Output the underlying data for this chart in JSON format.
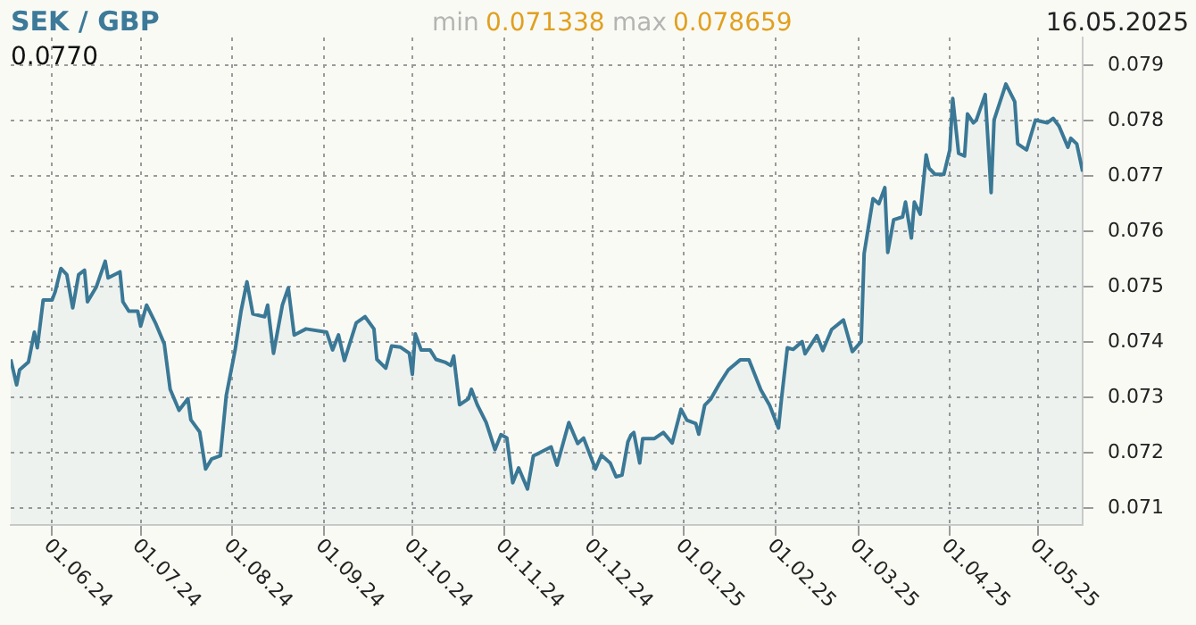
{
  "chart_data": {
    "type": "area",
    "title": "SEK / GBP",
    "annotations": [
      "min",
      "0.071338",
      "max",
      "0.078659",
      "16.05.2025",
      "0.0770"
    ],
    "x": [
      "2024-05-18",
      "2024-05-20",
      "2024-05-21",
      "2024-05-24",
      "2024-05-26",
      "2024-05-27",
      "2024-05-29",
      "2024-06-01",
      "2024-06-02",
      "2024-06-04",
      "2024-06-06",
      "2024-06-08",
      "2024-06-10",
      "2024-06-12",
      "2024-06-13",
      "2024-06-16",
      "2024-06-19",
      "2024-06-20",
      "2024-06-24",
      "2024-06-25",
      "2024-06-27",
      "2024-06-30",
      "2024-07-01",
      "2024-07-03",
      "2024-07-06",
      "2024-07-09",
      "2024-07-11",
      "2024-07-14",
      "2024-07-17",
      "2024-07-18",
      "2024-07-21",
      "2024-07-23",
      "2024-07-25",
      "2024-07-28",
      "2024-07-30",
      "2024-08-02",
      "2024-08-04",
      "2024-08-06",
      "2024-08-08",
      "2024-08-12",
      "2024-08-13",
      "2024-08-15",
      "2024-08-18",
      "2024-08-20",
      "2024-08-22",
      "2024-08-26",
      "2024-09-02",
      "2024-09-04",
      "2024-09-06",
      "2024-09-08",
      "2024-09-12",
      "2024-09-15",
      "2024-09-18",
      "2024-09-19",
      "2024-09-22",
      "2024-09-24",
      "2024-09-27",
      "2024-09-30",
      "2024-10-01",
      "2024-10-02",
      "2024-10-04",
      "2024-10-07",
      "2024-10-09",
      "2024-10-12",
      "2024-10-14",
      "2024-10-15",
      "2024-10-17",
      "2024-10-20",
      "2024-10-21",
      "2024-10-23",
      "2024-10-26",
      "2024-10-29",
      "2024-10-31",
      "2024-11-02",
      "2024-11-04",
      "2024-11-06",
      "2024-11-09",
      "2024-11-11",
      "2024-11-13",
      "2024-11-17",
      "2024-11-19",
      "2024-11-23",
      "2024-11-26",
      "2024-11-28",
      "2024-12-02",
      "2024-12-04",
      "2024-12-07",
      "2024-12-09",
      "2024-12-11",
      "2024-12-13",
      "2024-12-14",
      "2024-12-15",
      "2024-12-17",
      "2024-12-18",
      "2024-12-22",
      "2024-12-25",
      "2024-12-28",
      "2024-12-31",
      "2025-01-02",
      "2025-01-05",
      "2025-01-06",
      "2025-01-08",
      "2025-01-10",
      "2025-01-13",
      "2025-01-16",
      "2025-01-20",
      "2025-01-23",
      "2025-01-27",
      "2025-01-30",
      "2025-02-02",
      "2025-02-03",
      "2025-02-05",
      "2025-02-07",
      "2025-02-10",
      "2025-02-11",
      "2025-02-15",
      "2025-02-17",
      "2025-02-20",
      "2025-02-24",
      "2025-02-27",
      "2025-03-02",
      "2025-03-03",
      "2025-03-06",
      "2025-03-08",
      "2025-03-10",
      "2025-03-11",
      "2025-03-13",
      "2025-03-16",
      "2025-03-17",
      "2025-03-19",
      "2025-03-20",
      "2025-03-22",
      "2025-03-24",
      "2025-03-25",
      "2025-03-27",
      "2025-03-30",
      "2025-04-01",
      "2025-04-02",
      "2025-04-04",
      "2025-04-06",
      "2025-04-07",
      "2025-04-09",
      "2025-04-10",
      "2025-04-13",
      "2025-04-15",
      "2025-04-16",
      "2025-04-20",
      "2025-04-23",
      "2025-04-24",
      "2025-04-27",
      "2025-04-30",
      "2025-05-04",
      "2025-05-06",
      "2025-05-08",
      "2025-05-11",
      "2025-05-12",
      "2025-05-14",
      "2025-05-16"
    ],
    "series": [
      {
        "color": "#3a7896",
        "values": [
          0.07369,
          0.07323,
          0.0735,
          0.07364,
          0.07418,
          0.0739,
          0.07476,
          0.07476,
          0.0749,
          0.07533,
          0.07522,
          0.07462,
          0.07522,
          0.0753,
          0.07473,
          0.075,
          0.07546,
          0.07516,
          0.07527,
          0.07473,
          0.07456,
          0.07456,
          0.07429,
          0.07467,
          0.07435,
          0.07397,
          0.07315,
          0.07277,
          0.07298,
          0.0726,
          0.07238,
          0.07171,
          0.07189,
          0.07195,
          0.07304,
          0.07386,
          0.07456,
          0.07509,
          0.07451,
          0.07446,
          0.07467,
          0.0738,
          0.07467,
          0.07498,
          0.07413,
          0.07424,
          0.07418,
          0.07386,
          0.07413,
          0.07367,
          0.07435,
          0.07446,
          0.07424,
          0.07369,
          0.07353,
          0.07393,
          0.07391,
          0.0738,
          0.07342,
          0.07415,
          0.07386,
          0.07386,
          0.07369,
          0.07364,
          0.07358,
          0.07375,
          0.07287,
          0.07298,
          0.07315,
          0.07287,
          0.07255,
          0.07206,
          0.07233,
          0.07227,
          0.07146,
          0.07173,
          0.07135,
          0.07195,
          0.072,
          0.07211,
          0.07178,
          0.07255,
          0.07217,
          0.07227,
          0.07171,
          0.07196,
          0.07182,
          0.07157,
          0.0716,
          0.0722,
          0.07232,
          0.07237,
          0.07182,
          0.07226,
          0.07226,
          0.07237,
          0.07218,
          0.07279,
          0.07259,
          0.07253,
          0.07234,
          0.07286,
          0.07297,
          0.07325,
          0.0735,
          0.07368,
          0.07368,
          0.07314,
          0.07286,
          0.07245,
          0.07297,
          0.0739,
          0.07387,
          0.07401,
          0.07379,
          0.07412,
          0.07385,
          0.07423,
          0.0744,
          0.07383,
          0.07401,
          0.0756,
          0.07659,
          0.0765,
          0.07679,
          0.07562,
          0.07621,
          0.07626,
          0.07653,
          0.07588,
          0.07653,
          0.07631,
          0.07738,
          0.07714,
          0.07703,
          0.07703,
          0.07747,
          0.0784,
          0.07741,
          0.07736,
          0.07812,
          0.07796,
          0.07801,
          0.07847,
          0.0767,
          0.07801,
          0.07866,
          0.07834,
          0.07758,
          0.07747,
          0.07801,
          0.07796,
          0.07804,
          0.0779,
          0.07752,
          0.07768,
          0.07758,
          0.07708
        ]
      }
    ],
    "xlim": [
      "2024-05-18",
      "2025-05-16"
    ],
    "xticks": [
      {
        "value": "2024-06-01",
        "label": "01.06.24"
      },
      {
        "value": "2024-07-01",
        "label": "01.07.24"
      },
      {
        "value": "2024-08-01",
        "label": "01.08.24"
      },
      {
        "value": "2024-09-01",
        "label": "01.09.24"
      },
      {
        "value": "2024-10-01",
        "label": "01.10.24"
      },
      {
        "value": "2024-11-01",
        "label": "01.11.24"
      },
      {
        "value": "2024-12-01",
        "label": "01.12.24"
      },
      {
        "value": "2025-01-01",
        "label": "01.01.25"
      },
      {
        "value": "2025-02-01",
        "label": "01.02.25"
      },
      {
        "value": "2025-03-01",
        "label": "01.03.25"
      },
      {
        "value": "2025-04-01",
        "label": "01.04.25"
      },
      {
        "value": "2025-05-01",
        "label": "01.05.25"
      }
    ],
    "ylim": [
      0.0707,
      0.0795
    ],
    "yticks": [
      0.071,
      0.072,
      0.073,
      0.074,
      0.075,
      0.076,
      0.077,
      0.078,
      0.079
    ],
    "grid": true,
    "marker": "none",
    "line_style": "solid"
  }
}
